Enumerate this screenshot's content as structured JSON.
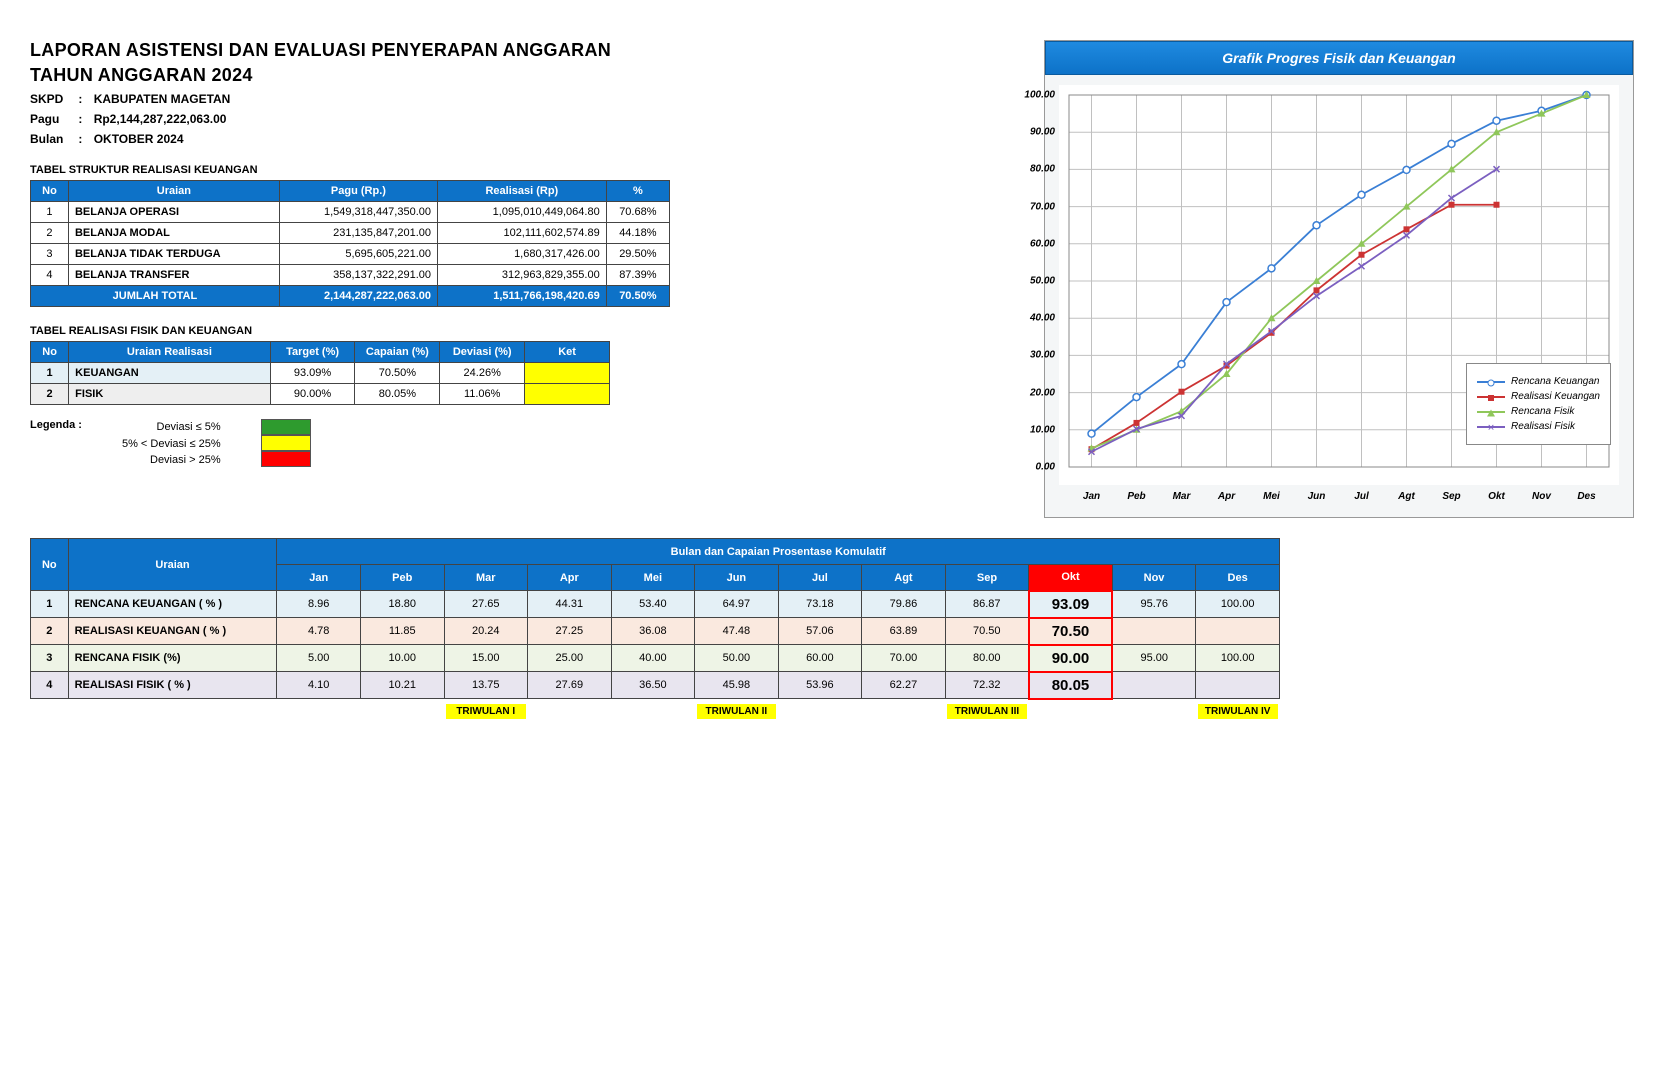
{
  "header": {
    "title1": "LAPORAN ASISTENSI DAN EVALUASI PENYERAPAN ANGGARAN",
    "title2": "TAHUN ANGGARAN 2024",
    "skpd_label": "SKPD",
    "skpd_value": "KABUPATEN MAGETAN",
    "pagu_label": "Pagu",
    "pagu_value": "Rp2,144,287,222,063.00",
    "bulan_label": "Bulan",
    "bulan_value": "OKTOBER 2024"
  },
  "table1": {
    "title": "TABEL STRUKTUR REALISASI KEUANGAN",
    "headers": {
      "no": "No",
      "uraian": "Uraian",
      "pagu": "Pagu (Rp.)",
      "realisasi": "Realisasi (Rp)",
      "pct": "%"
    },
    "rows": [
      {
        "no": "1",
        "uraian": "BELANJA OPERASI",
        "pagu": "1,549,318,447,350.00",
        "realisasi": "1,095,010,449,064.80",
        "pct": "70.68%"
      },
      {
        "no": "2",
        "uraian": "BELANJA MODAL",
        "pagu": "231,135,847,201.00",
        "realisasi": "102,111,602,574.89",
        "pct": "44.18%"
      },
      {
        "no": "3",
        "uraian": "BELANJA TIDAK TERDUGA",
        "pagu": "5,695,605,221.00",
        "realisasi": "1,680,317,426.00",
        "pct": "29.50%"
      },
      {
        "no": "4",
        "uraian": "BELANJA TRANSFER",
        "pagu": "358,137,322,291.00",
        "realisasi": "312,963,829,355.00",
        "pct": "87.39%"
      }
    ],
    "total": {
      "label": "JUMLAH TOTAL",
      "pagu": "2,144,287,222,063.00",
      "realisasi": "1,511,766,198,420.69",
      "pct": "70.50%"
    }
  },
  "table2": {
    "title": "TABEL REALISASI FISIK DAN KEUANGAN",
    "headers": {
      "no": "No",
      "uraian": "Uraian Realisasi",
      "target": "Target (%)",
      "capaian": "Capaian (%)",
      "deviasi": "Deviasi (%)",
      "ket": "Ket"
    },
    "rows": [
      {
        "no": "1",
        "uraian": "KEUANGAN",
        "target": "93.09%",
        "capaian": "70.50%",
        "deviasi": "24.26%"
      },
      {
        "no": "2",
        "uraian": "FISIK",
        "target": "90.00%",
        "capaian": "80.05%",
        "deviasi": "11.06%"
      }
    ]
  },
  "legenda": {
    "label": "Legenda :",
    "items": [
      "Deviasi ≤ 5%",
      "5% < Deviasi ≤ 25%",
      "Deviasi > 25%"
    ],
    "colors": [
      "#2e9b2e",
      "#ffff00",
      "#ff0000"
    ]
  },
  "chart": {
    "title": "Grafik Progres Fisik dan Keuangan",
    "ylim": [
      0,
      100
    ],
    "ytick_step": 10,
    "months": [
      "Jan",
      "Peb",
      "Mar",
      "Apr",
      "Mei",
      "Jun",
      "Jul",
      "Agt",
      "Sep",
      "Okt",
      "Nov",
      "Des"
    ],
    "series": [
      {
        "name": "Rencana Keuangan",
        "color": "#3a7fd5",
        "marker": "circle-open",
        "values": [
          8.96,
          18.8,
          27.65,
          44.31,
          53.4,
          64.97,
          73.18,
          79.86,
          86.87,
          93.09,
          95.76,
          100.0
        ]
      },
      {
        "name": "Realisasi Keuangan",
        "color": "#cc3333",
        "marker": "square",
        "values": [
          4.78,
          11.85,
          20.24,
          27.25,
          36.08,
          47.48,
          57.06,
          63.89,
          70.5,
          70.5,
          null,
          null
        ]
      },
      {
        "name": "Rencana Fisik",
        "color": "#8fc75a",
        "marker": "triangle",
        "values": [
          5.0,
          10.0,
          15.0,
          25.0,
          40.0,
          50.0,
          60.0,
          70.0,
          80.0,
          90.0,
          95.0,
          100.0
        ]
      },
      {
        "name": "Realisasi Fisik",
        "color": "#7b5fc0",
        "marker": "x",
        "values": [
          4.1,
          10.21,
          13.75,
          27.69,
          36.5,
          45.98,
          53.96,
          62.27,
          72.32,
          80.05,
          null,
          null
        ]
      }
    ],
    "background_color": "#ffffff",
    "grid_color": "#c0c0c0"
  },
  "table3": {
    "headers": {
      "no": "No",
      "uraian": "Uraian",
      "span": "Bulan dan Capaian Prosentase Komulatif",
      "months": [
        "Jan",
        "Peb",
        "Mar",
        "Apr",
        "Mei",
        "Jun",
        "Jul",
        "Agt",
        "Sep",
        "Okt",
        "Nov",
        "Des"
      ]
    },
    "rows": [
      {
        "no": "1",
        "uraian": "RENCANA KEUANGAN ( % )",
        "vals": [
          "8.96",
          "18.80",
          "27.65",
          "44.31",
          "53.40",
          "64.97",
          "73.18",
          "79.86",
          "86.87",
          "93.09",
          "95.76",
          "100.00"
        ]
      },
      {
        "no": "2",
        "uraian": "REALISASI KEUANGAN ( % )",
        "vals": [
          "4.78",
          "11.85",
          "20.24",
          "27.25",
          "36.08",
          "47.48",
          "57.06",
          "63.89",
          "70.50",
          "70.50",
          "",
          ""
        ]
      },
      {
        "no": "3",
        "uraian": "RENCANA FISIK (%)",
        "vals": [
          "5.00",
          "10.00",
          "15.00",
          "25.00",
          "40.00",
          "50.00",
          "60.00",
          "70.00",
          "80.00",
          "90.00",
          "95.00",
          "100.00"
        ]
      },
      {
        "no": "4",
        "uraian": "REALISASI FISIK ( % )",
        "vals": [
          "4.10",
          "10.21",
          "13.75",
          "27.69",
          "36.50",
          "45.98",
          "53.96",
          "62.27",
          "72.32",
          "80.05",
          "",
          ""
        ]
      }
    ],
    "triwulan": [
      "",
      "",
      "TRIWULAN I",
      "",
      "",
      "TRIWULAN II",
      "",
      "",
      "TRIWULAN III",
      "",
      "",
      "TRIWULAN IV"
    ],
    "highlight_month_index": 9
  }
}
